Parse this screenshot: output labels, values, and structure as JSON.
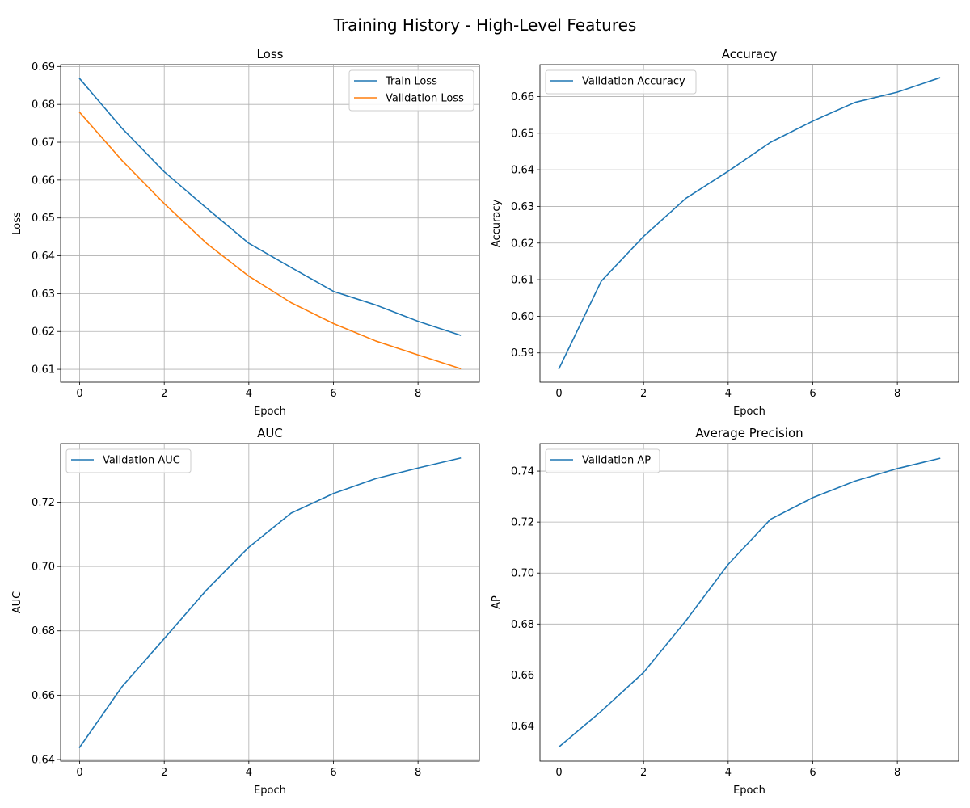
{
  "figure": {
    "title": "Training History - High-Level Features"
  },
  "colors": {
    "blue": "#1f77b4",
    "orange": "#ff7f0e",
    "grid": "#b0b0b0",
    "legend_border": "#cccccc"
  },
  "chart_data": [
    {
      "type": "line",
      "title": "Loss",
      "xlabel": "Epoch",
      "ylabel": "Loss",
      "x": [
        0,
        1,
        2,
        3,
        4,
        5,
        6,
        7,
        8,
        9
      ],
      "xlim": [
        -0.45,
        9.45
      ],
      "ylim": [
        0.6066,
        0.6905
      ],
      "xticks": [
        0,
        2,
        4,
        6,
        8
      ],
      "yticks": [
        0.61,
        0.62,
        0.63,
        0.64,
        0.65,
        0.66,
        0.67,
        0.68,
        0.69
      ],
      "ytick_labels": [
        "0.61",
        "0.62",
        "0.63",
        "0.64",
        "0.65",
        "0.66",
        "0.67",
        "0.68",
        "0.69"
      ],
      "grid": true,
      "legend": "upper-right",
      "series": [
        {
          "name": "Train Loss",
          "color": "#1f77b4",
          "values": [
            0.6868,
            0.6737,
            0.6622,
            0.6526,
            0.6433,
            0.6369,
            0.6306,
            0.627,
            0.6227,
            0.619
          ]
        },
        {
          "name": "Validation Loss",
          "color": "#ff7f0e",
          "values": [
            0.6779,
            0.6652,
            0.6538,
            0.6433,
            0.6346,
            0.6276,
            0.6221,
            0.6175,
            0.6138,
            0.6102
          ]
        }
      ]
    },
    {
      "type": "line",
      "title": "Accuracy",
      "xlabel": "Epoch",
      "ylabel": "Accuracy",
      "x": [
        0,
        1,
        2,
        3,
        4,
        5,
        6,
        7,
        8,
        9
      ],
      "xlim": [
        -0.45,
        9.45
      ],
      "ylim": [
        0.582,
        0.6687
      ],
      "xticks": [
        0,
        2,
        4,
        6,
        8
      ],
      "yticks": [
        0.59,
        0.6,
        0.61,
        0.62,
        0.63,
        0.64,
        0.65,
        0.66
      ],
      "ytick_labels": [
        "0.59",
        "0.60",
        "0.61",
        "0.62",
        "0.63",
        "0.64",
        "0.65",
        "0.66"
      ],
      "grid": true,
      "legend": "upper-left",
      "series": [
        {
          "name": "Validation Accuracy",
          "color": "#1f77b4",
          "values": [
            0.5857,
            0.6096,
            0.6218,
            0.6322,
            0.6396,
            0.6475,
            0.6533,
            0.6584,
            0.6612,
            0.6651
          ]
        }
      ]
    },
    {
      "type": "line",
      "title": "AUC",
      "xlabel": "Epoch",
      "ylabel": "AUC",
      "x": [
        0,
        1,
        2,
        3,
        4,
        5,
        6,
        7,
        8,
        9
      ],
      "xlim": [
        -0.45,
        9.45
      ],
      "ylim": [
        0.6395,
        0.7382
      ],
      "xticks": [
        0,
        2,
        4,
        6,
        8
      ],
      "yticks": [
        0.64,
        0.66,
        0.68,
        0.7,
        0.72
      ],
      "ytick_labels": [
        "0.64",
        "0.66",
        "0.68",
        "0.70",
        "0.72"
      ],
      "grid": true,
      "legend": "upper-left",
      "series": [
        {
          "name": "Validation AUC",
          "color": "#1f77b4",
          "values": [
            0.6438,
            0.6626,
            0.6776,
            0.6927,
            0.706,
            0.7166,
            0.7227,
            0.7273,
            0.7306,
            0.7337
          ]
        }
      ]
    },
    {
      "type": "line",
      "title": "Average Precision",
      "xlabel": "Epoch",
      "ylabel": "AP",
      "x": [
        0,
        1,
        2,
        3,
        4,
        5,
        6,
        7,
        8,
        9
      ],
      "xlim": [
        -0.45,
        9.45
      ],
      "ylim": [
        0.6262,
        0.7508
      ],
      "xticks": [
        0,
        2,
        4,
        6,
        8
      ],
      "yticks": [
        0.64,
        0.66,
        0.68,
        0.7,
        0.72,
        0.74
      ],
      "ytick_labels": [
        "0.64",
        "0.66",
        "0.68",
        "0.70",
        "0.72",
        "0.74"
      ],
      "grid": true,
      "legend": "upper-left",
      "series": [
        {
          "name": "Validation AP",
          "color": "#1f77b4",
          "values": [
            0.6318,
            0.6458,
            0.661,
            0.6813,
            0.7034,
            0.7211,
            0.7296,
            0.7361,
            0.741,
            0.745
          ]
        }
      ]
    }
  ]
}
